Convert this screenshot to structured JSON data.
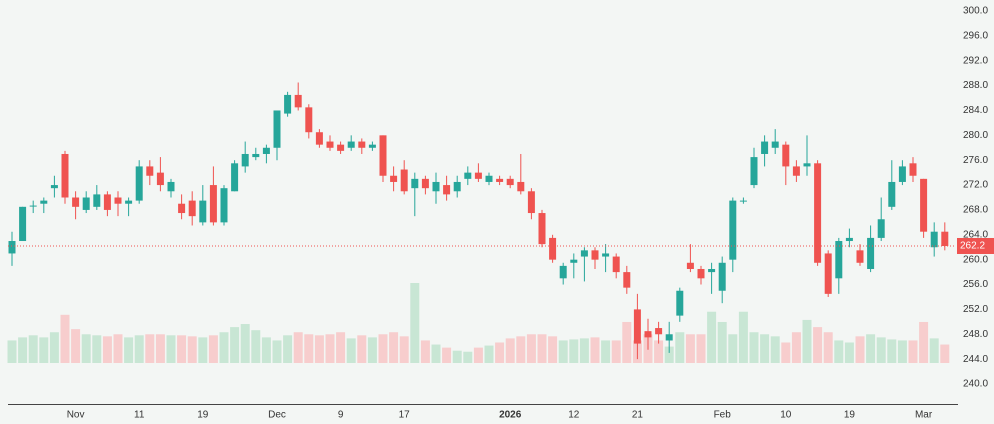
{
  "chart_data": {
    "type": "candlestick",
    "categories": [
      null,
      null,
      null,
      null,
      null,
      null,
      "Nov",
      null,
      null,
      null,
      null,
      null,
      "11",
      null,
      null,
      null,
      null,
      null,
      "19",
      null,
      null,
      null,
      null,
      null,
      null,
      "Dec",
      null,
      null,
      null,
      null,
      null,
      "9",
      null,
      null,
      null,
      null,
      null,
      "17",
      null,
      null,
      null,
      null,
      null,
      null,
      null,
      null,
      null,
      "2026",
      null,
      null,
      null,
      null,
      null,
      "12",
      null,
      null,
      null,
      null,
      null,
      "21",
      null,
      null,
      null,
      null,
      null,
      null,
      null,
      "Feb",
      null,
      null,
      null,
      null,
      null,
      "10",
      null,
      null,
      null,
      null,
      null,
      "19",
      null,
      null,
      null,
      null,
      null,
      null,
      "Mar",
      null,
      null
    ],
    "open": [
      261,
      263,
      268.7,
      269,
      271.5,
      277,
      270,
      268,
      268.5,
      270.5,
      270,
      269,
      269.5,
      275,
      274,
      271,
      269,
      269.5,
      266,
      272,
      266,
      271,
      275,
      276.5,
      277,
      278,
      283.5,
      286.5,
      284.5,
      280.5,
      279,
      278.5,
      278,
      279,
      278,
      280,
      273.5,
      274.5,
      271.5,
      273,
      271,
      272,
      271,
      273,
      274,
      272.5,
      273,
      273,
      272.5,
      271,
      267.5,
      263.5,
      257,
      259.5,
      260.5,
      261.5,
      260.5,
      260.5,
      258,
      252,
      248.5,
      249,
      247,
      251,
      259.5,
      258.5,
      258,
      255,
      260,
      269.5,
      272,
      277,
      278,
      278.5,
      275,
      275,
      275.5,
      261,
      257,
      263,
      261.5,
      258.5,
      263.5,
      268.5,
      272.5,
      275.5,
      273,
      262,
      264.5
    ],
    "high": [
      264.5,
      268.5,
      269.5,
      270,
      273.5,
      277.5,
      271,
      271,
      272,
      271,
      271,
      270,
      276,
      276,
      276.5,
      273,
      270.5,
      271,
      272,
      275,
      272,
      276,
      279,
      278,
      278.5,
      284,
      287,
      288.5,
      285,
      281,
      280,
      279,
      280,
      279.5,
      279,
      280,
      275,
      276,
      274,
      273.5,
      274,
      273.5,
      273.5,
      275,
      275.5,
      274,
      273.5,
      273.5,
      277,
      271.5,
      268,
      264,
      259.5,
      261,
      262,
      262,
      262.5,
      261,
      259,
      254.5,
      250.5,
      250,
      250,
      255.5,
      262.5,
      259,
      259.5,
      260.5,
      270,
      270,
      278,
      280,
      281,
      279,
      276,
      280,
      276,
      261.5,
      263.5,
      265,
      262.5,
      265.5,
      270,
      276,
      276,
      276.5,
      273,
      266,
      266
    ],
    "low": [
      259,
      263,
      267.5,
      267.5,
      270,
      269,
      266.5,
      267.5,
      268,
      267,
      267,
      267,
      269,
      272,
      271,
      270,
      266.5,
      265.5,
      265.5,
      265.5,
      265.5,
      271,
      274,
      276,
      275.5,
      276,
      283,
      284,
      279.5,
      278,
      277.5,
      277,
      277.5,
      277,
      277.5,
      272.5,
      271,
      270.5,
      267,
      270.5,
      269,
      269.5,
      270,
      272,
      272.5,
      272,
      272,
      271.5,
      270.5,
      266.5,
      262,
      259.5,
      256,
      257,
      256.5,
      258.5,
      258,
      257,
      254.5,
      244,
      245.5,
      246.5,
      245,
      250,
      258,
      256,
      254.5,
      253,
      258,
      269,
      271.5,
      275,
      277,
      272,
      272.5,
      273.5,
      259,
      254,
      254.5,
      262,
      259,
      258,
      263,
      268,
      272,
      272.5,
      263.5,
      260.5,
      261.5
    ],
    "close": [
      263,
      268.5,
      268.7,
      269.5,
      272,
      270,
      268.5,
      270,
      270.5,
      268,
      269,
      269.5,
      275,
      273.5,
      272,
      272.5,
      267.5,
      267,
      269.5,
      266,
      271.5,
      275.5,
      277,
      277,
      278,
      284,
      286.5,
      284.5,
      280.5,
      278.5,
      278,
      277.5,
      279,
      278,
      278.5,
      273.5,
      272.5,
      271,
      273,
      271.5,
      272.5,
      270.5,
      272.5,
      274,
      273,
      273.5,
      272.5,
      272,
      271,
      267.5,
      262.5,
      260,
      259,
      260,
      261.5,
      260,
      261,
      258,
      255.5,
      246.5,
      247.5,
      248,
      248,
      255,
      258.5,
      257,
      258.5,
      259.5,
      269.5,
      269.5,
      276.5,
      279,
      279,
      275,
      273.5,
      275.5,
      259.5,
      254.5,
      263,
      263.5,
      259.5,
      263.5,
      266.5,
      272.5,
      275,
      273.5,
      264.5,
      264.5,
      262.2
    ],
    "volume": [
      22,
      25,
      27,
      25,
      30,
      47,
      33,
      28,
      27,
      26,
      28,
      25,
      27,
      28,
      28,
      27,
      27,
      26,
      25,
      27,
      30,
      35,
      38,
      32,
      25,
      22,
      27,
      30,
      28,
      27,
      28,
      30,
      24,
      27,
      25,
      28,
      30,
      26,
      78,
      22,
      18,
      15,
      12,
      11,
      15,
      17,
      20,
      24,
      26,
      28,
      28,
      26,
      22,
      23,
      24,
      25,
      22,
      22,
      40,
      22,
      28,
      22,
      16,
      30,
      28,
      28,
      50,
      40,
      28,
      50,
      30,
      28,
      26,
      20,
      30,
      42,
      35,
      30,
      22,
      20,
      26,
      28,
      25,
      23,
      22,
      22,
      40,
      24,
      18
    ],
    "up_color": "#26a69a",
    "down_color": "#ef5350",
    "up_volume_color": "#c8e6d4",
    "down_volume_color": "#f7cdcd",
    "ylim": [
      240,
      300
    ],
    "yticks": [
      {
        "value": 240,
        "label": "240.0"
      },
      {
        "value": 244,
        "label": "244.0"
      },
      {
        "value": 248,
        "label": "248.0"
      },
      {
        "value": 252,
        "label": "252.0"
      },
      {
        "value": 256,
        "label": "256.0"
      },
      {
        "value": 260,
        "label": "260.0"
      },
      {
        "value": 264,
        "label": "264.0"
      },
      {
        "value": 268,
        "label": "268.0"
      },
      {
        "value": 272,
        "label": "272.0"
      },
      {
        "value": 276,
        "label": "276.0"
      },
      {
        "value": 280,
        "label": "280.0"
      },
      {
        "value": 284,
        "label": "284.0"
      },
      {
        "value": 288,
        "label": "288.0"
      },
      {
        "value": 292,
        "label": "292.0"
      },
      {
        "value": 296,
        "label": "296.0"
      },
      {
        "value": 300,
        "label": "300.0"
      }
    ],
    "last_price": {
      "value": 262.2,
      "label": "262.2"
    }
  }
}
